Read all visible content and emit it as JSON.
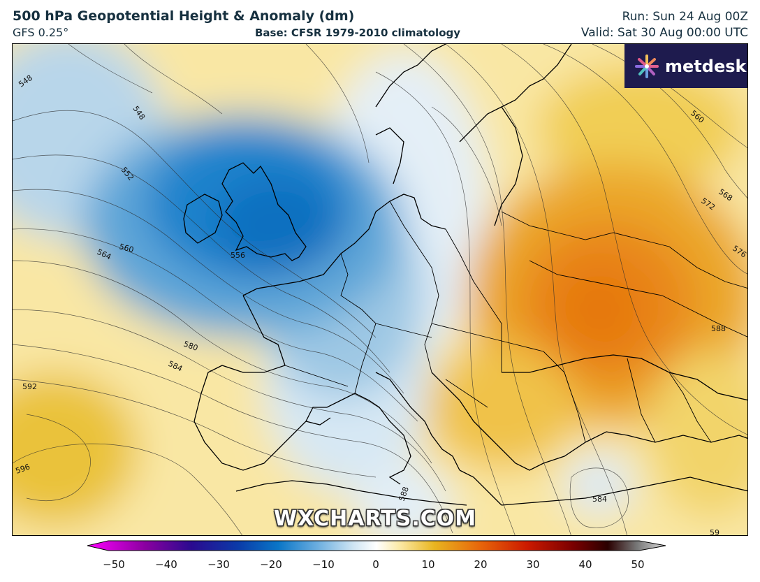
{
  "header": {
    "title": "500 hPa Geopotential Height & Anomaly (dm)",
    "model": "GFS 0.25°",
    "base": "Base: CFSR 1979-2010 climatology",
    "run": "Run: Sun 24 Aug 00Z",
    "valid": "Valid: Sat 30 Aug 00:00 UTC"
  },
  "logo": {
    "text": "metdesk",
    "icon": "flower-logo-icon"
  },
  "watermark": "WXCHARTS.COM",
  "contour_labels": [
    "548",
    "548",
    "552",
    "556",
    "560",
    "564",
    "580",
    "584",
    "592",
    "596",
    "588",
    "584",
    "560",
    "568",
    "572",
    "576",
    "588",
    "59"
  ],
  "colorbar": {
    "ticks": [
      "−50",
      "−40",
      "−30",
      "−20",
      "−10",
      "0",
      "10",
      "20",
      "30",
      "40",
      "50"
    ],
    "min": -50,
    "max": 50,
    "colors": {
      "neg_extreme": "#ff00ff",
      "strong_neg": "#0b2f8f",
      "neg": "#0a76c7",
      "weak_neg": "#cfe5f3",
      "zero": "#ffffff",
      "weak_pos": "#fbe9a6",
      "pos": "#e9b520",
      "strong_pos": "#e7650a",
      "very_strong_pos": "#7a0000",
      "extreme": "#c8c8c8"
    }
  }
}
